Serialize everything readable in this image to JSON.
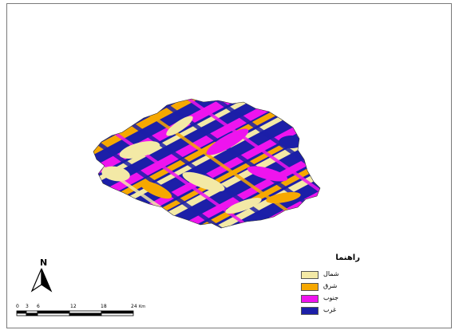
{
  "map": {
    "north_label": "N",
    "scale": {
      "ticks": [
        "0",
        "3",
        "6",
        "12",
        "18",
        "24"
      ],
      "unit": "Km"
    },
    "legend": {
      "title": "راهنما",
      "items": [
        {
          "label": "شمال",
          "color": "#f3e9a6"
        },
        {
          "label": "شرق",
          "color": "#f6a800"
        },
        {
          "label": "جنوب",
          "color": "#ee14ee"
        },
        {
          "label": "غرب",
          "color": "#1c1fa8"
        }
      ]
    }
  }
}
